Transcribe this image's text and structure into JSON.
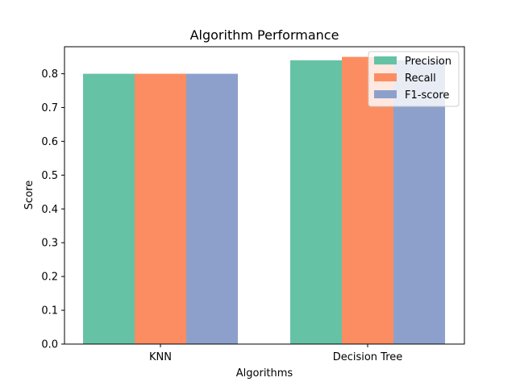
{
  "chart_data": {
    "type": "bar",
    "title": "Algorithm Performance",
    "xlabel": "Algorithms",
    "ylabel": "Score",
    "categories": [
      "KNN",
      "Decision Tree"
    ],
    "series": [
      {
        "name": "Precision",
        "values": [
          0.8,
          0.84
        ],
        "color": "#66c2a5"
      },
      {
        "name": "Recall",
        "values": [
          0.8,
          0.85
        ],
        "color": "#fc8d62"
      },
      {
        "name": "F1-score",
        "values": [
          0.8,
          0.84
        ],
        "color": "#8da0cb"
      }
    ],
    "ylim": [
      0,
      0.88
    ],
    "yticks": [
      "0.0",
      "0.1",
      "0.2",
      "0.3",
      "0.4",
      "0.5",
      "0.6",
      "0.7",
      "0.8"
    ],
    "grid": false,
    "legend_position": "top-right"
  }
}
